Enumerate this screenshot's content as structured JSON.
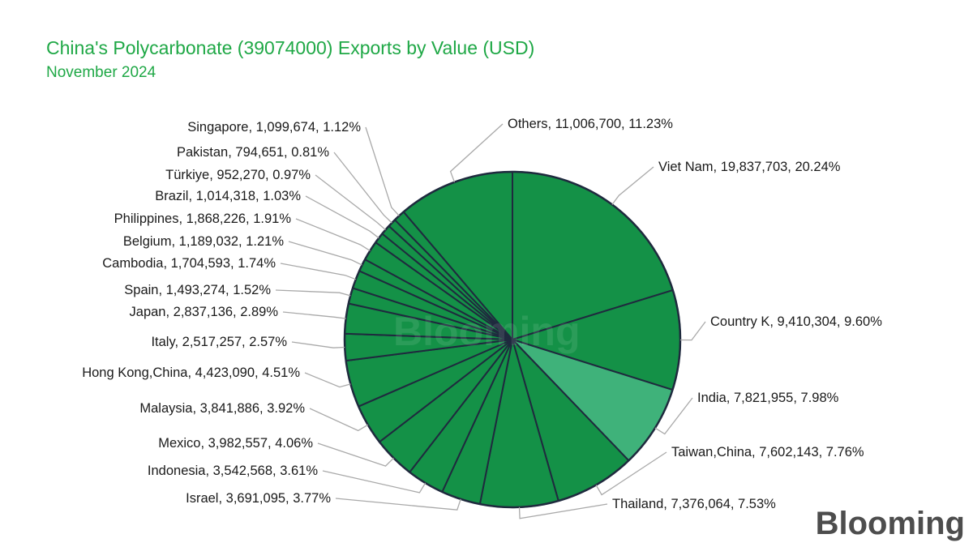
{
  "title": "China's Polycarbonate (39074000) Exports by Value (USD)",
  "subtitle": "November 2024",
  "brand": "Blooming",
  "watermark": "Blooming",
  "colors": {
    "title": "#1fa846",
    "slice": "#149147",
    "slice_highlight": "#3fb27a",
    "edge": "#1f2a3e",
    "leader": "#a9a9a9"
  },
  "chart_data": {
    "type": "pie",
    "title": "China's Polycarbonate (39074000) Exports by Value (USD)",
    "subtitle": "November 2024",
    "start_angle": "12 o'clock",
    "direction": "clockwise",
    "slices": [
      {
        "label": "Viet Nam",
        "value": 19837703,
        "percent": "20.24%",
        "text": "Viet Nam, 19,837,703, 20.24%"
      },
      {
        "label": "Country K",
        "value": 9410304,
        "percent": "9.60%",
        "text": "Country K, 9,410,304, 9.60%"
      },
      {
        "label": "India",
        "value": 7821955,
        "percent": "7.98%",
        "text": "India, 7,821,955, 7.98%",
        "highlight": true
      },
      {
        "label": "Taiwan,China",
        "value": 7602143,
        "percent": "7.76%",
        "text": "Taiwan,China, 7,602,143, 7.76%"
      },
      {
        "label": "Thailand",
        "value": 7376064,
        "percent": "7.53%",
        "text": "Thailand, 7,376,064, 7.53%"
      },
      {
        "label": "Israel",
        "value": 3691095,
        "percent": "3.77%",
        "text": "Israel, 3,691,095, 3.77%"
      },
      {
        "label": "Indonesia",
        "value": 3542568,
        "percent": "3.61%",
        "text": "Indonesia, 3,542,568, 3.61%"
      },
      {
        "label": "Mexico",
        "value": 3982557,
        "percent": "4.06%",
        "text": "Mexico, 3,982,557, 4.06%"
      },
      {
        "label": "Malaysia",
        "value": 3841886,
        "percent": "3.92%",
        "text": "Malaysia, 3,841,886, 3.92%"
      },
      {
        "label": "Hong Kong,China",
        "value": 4423090,
        "percent": "4.51%",
        "text": "Hong Kong,China, 4,423,090, 4.51%"
      },
      {
        "label": "Italy",
        "value": 2517257,
        "percent": "2.57%",
        "text": "Italy, 2,517,257, 2.57%"
      },
      {
        "label": "Japan",
        "value": 2837136,
        "percent": "2.89%",
        "text": "Japan, 2,837,136, 2.89%"
      },
      {
        "label": "Spain",
        "value": 1493274,
        "percent": "1.52%",
        "text": "Spain, 1,493,274, 1.52%"
      },
      {
        "label": "Cambodia",
        "value": 1704593,
        "percent": "1.74%",
        "text": "Cambodia, 1,704,593, 1.74%"
      },
      {
        "label": "Belgium",
        "value": 1189032,
        "percent": "1.21%",
        "text": "Belgium, 1,189,032, 1.21%"
      },
      {
        "label": "Philippines",
        "value": 1868226,
        "percent": "1.91%",
        "text": "Philippines, 1,868,226, 1.91%"
      },
      {
        "label": "Brazil",
        "value": 1014318,
        "percent": "1.03%",
        "text": "Brazil, 1,014,318, 1.03%"
      },
      {
        "label": "Türkiye",
        "value": 952270,
        "percent": "0.97%",
        "text": "Türkiye, 952,270, 0.97%"
      },
      {
        "label": "Pakistan",
        "value": 794651,
        "percent": "0.81%",
        "text": "Pakistan, 794,651, 0.81%"
      },
      {
        "label": "Singapore",
        "value": 1099674,
        "percent": "1.12%",
        "text": "Singapore, 1,099,674, 1.12%"
      },
      {
        "label": "Others",
        "value": 11006700,
        "percent": "11.23%",
        "text": "Others, 11,006,700, 11.23%"
      }
    ]
  }
}
